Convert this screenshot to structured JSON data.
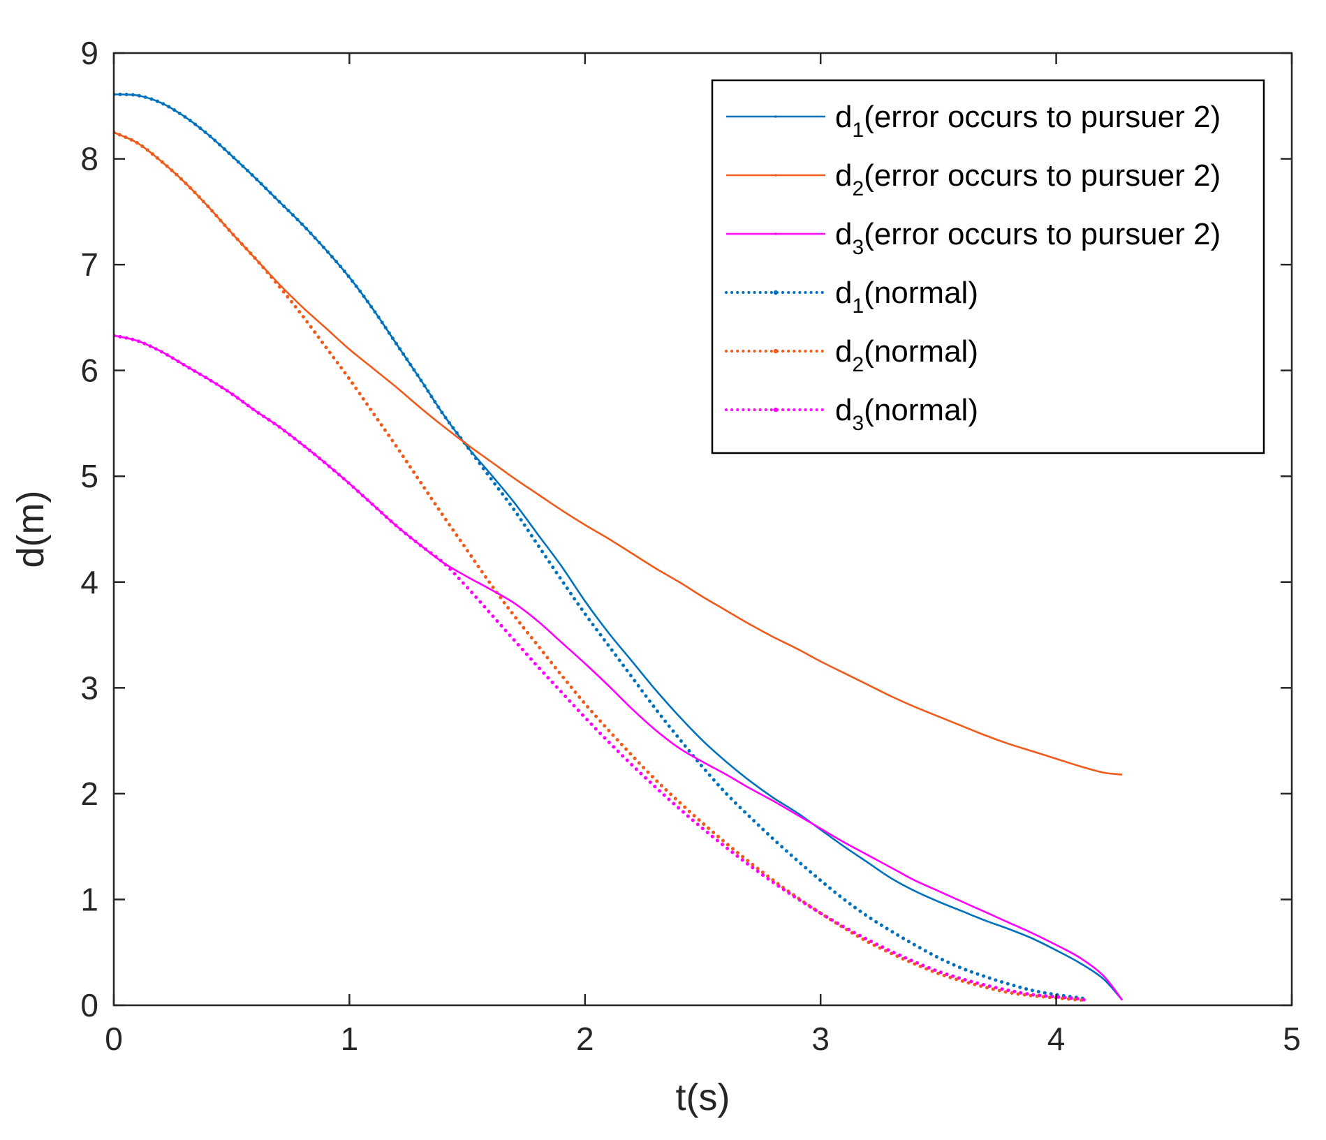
{
  "chart_data": {
    "type": "line",
    "title": "",
    "xlabel": "t(s)",
    "ylabel": "d(m)",
    "xlim": [
      0,
      5
    ],
    "ylim": [
      0,
      9
    ],
    "xticks": [
      "0",
      "1",
      "2",
      "3",
      "4",
      "5"
    ],
    "yticks": [
      "0",
      "1",
      "2",
      "3",
      "4",
      "5",
      "6",
      "7",
      "8",
      "9"
    ],
    "grid": false,
    "legend_position": "top-right",
    "series": [
      {
        "name": "d1(error occurs to pursuer 2)",
        "name_base": "d",
        "name_sub": "1",
        "name_rest": "(error occurs to pursuer 2)",
        "color": "#0072BD",
        "style": "solid",
        "points": [
          [
            0,
            8.61
          ],
          [
            0.1,
            8.6
          ],
          [
            0.2,
            8.53
          ],
          [
            0.3,
            8.4
          ],
          [
            0.4,
            8.23
          ],
          [
            0.5,
            8.03
          ],
          [
            0.6,
            7.82
          ],
          [
            0.7,
            7.6
          ],
          [
            0.8,
            7.38
          ],
          [
            0.9,
            7.14
          ],
          [
            1.0,
            6.88
          ],
          [
            1.1,
            6.58
          ],
          [
            1.2,
            6.25
          ],
          [
            1.3,
            5.92
          ],
          [
            1.4,
            5.58
          ],
          [
            1.5,
            5.28
          ],
          [
            1.6,
            5.02
          ],
          [
            1.7,
            4.75
          ],
          [
            1.8,
            4.45
          ],
          [
            1.9,
            4.15
          ],
          [
            2.0,
            3.82
          ],
          [
            2.1,
            3.52
          ],
          [
            2.2,
            3.25
          ],
          [
            2.3,
            2.98
          ],
          [
            2.4,
            2.73
          ],
          [
            2.5,
            2.5
          ],
          [
            2.6,
            2.3
          ],
          [
            2.7,
            2.12
          ],
          [
            2.8,
            1.96
          ],
          [
            2.9,
            1.82
          ],
          [
            3.0,
            1.66
          ],
          [
            3.1,
            1.5
          ],
          [
            3.2,
            1.35
          ],
          [
            3.3,
            1.2
          ],
          [
            3.4,
            1.08
          ],
          [
            3.5,
            0.98
          ],
          [
            3.6,
            0.89
          ],
          [
            3.7,
            0.8
          ],
          [
            3.8,
            0.72
          ],
          [
            3.9,
            0.63
          ],
          [
            4.0,
            0.52
          ],
          [
            4.1,
            0.4
          ],
          [
            4.2,
            0.25
          ],
          [
            4.28,
            0.05
          ]
        ]
      },
      {
        "name": "d2(error occurs to pursuer 2)",
        "name_base": "d",
        "name_sub": "2",
        "name_rest": "(error occurs to pursuer 2)",
        "color": "#F05A1A",
        "style": "solid",
        "points": [
          [
            0,
            8.25
          ],
          [
            0.1,
            8.15
          ],
          [
            0.2,
            7.98
          ],
          [
            0.3,
            7.78
          ],
          [
            0.4,
            7.55
          ],
          [
            0.5,
            7.3
          ],
          [
            0.6,
            7.06
          ],
          [
            0.7,
            6.82
          ],
          [
            0.8,
            6.6
          ],
          [
            0.9,
            6.4
          ],
          [
            1.0,
            6.2
          ],
          [
            1.1,
            6.02
          ],
          [
            1.2,
            5.84
          ],
          [
            1.3,
            5.65
          ],
          [
            1.4,
            5.47
          ],
          [
            1.5,
            5.3
          ],
          [
            1.6,
            5.14
          ],
          [
            1.7,
            4.98
          ],
          [
            1.8,
            4.83
          ],
          [
            1.9,
            4.68
          ],
          [
            2.0,
            4.54
          ],
          [
            2.1,
            4.41
          ],
          [
            2.2,
            4.27
          ],
          [
            2.3,
            4.13
          ],
          [
            2.4,
            4.0
          ],
          [
            2.5,
            3.86
          ],
          [
            2.6,
            3.73
          ],
          [
            2.7,
            3.6
          ],
          [
            2.8,
            3.48
          ],
          [
            2.9,
            3.37
          ],
          [
            3.0,
            3.25
          ],
          [
            3.1,
            3.14
          ],
          [
            3.2,
            3.03
          ],
          [
            3.3,
            2.92
          ],
          [
            3.4,
            2.82
          ],
          [
            3.5,
            2.73
          ],
          [
            3.6,
            2.64
          ],
          [
            3.7,
            2.55
          ],
          [
            3.8,
            2.47
          ],
          [
            3.9,
            2.4
          ],
          [
            4.0,
            2.33
          ],
          [
            4.1,
            2.26
          ],
          [
            4.2,
            2.2
          ],
          [
            4.28,
            2.18
          ]
        ]
      },
      {
        "name": "d3(error occurs to pursuer 2)",
        "name_base": "d",
        "name_sub": "3",
        "name_rest": "(error occurs to pursuer 2)",
        "color": "#FF00FF",
        "style": "solid",
        "points": [
          [
            0,
            6.33
          ],
          [
            0.1,
            6.28
          ],
          [
            0.2,
            6.18
          ],
          [
            0.3,
            6.05
          ],
          [
            0.4,
            5.92
          ],
          [
            0.5,
            5.78
          ],
          [
            0.6,
            5.62
          ],
          [
            0.7,
            5.47
          ],
          [
            0.8,
            5.3
          ],
          [
            0.9,
            5.12
          ],
          [
            1.0,
            4.93
          ],
          [
            1.1,
            4.73
          ],
          [
            1.2,
            4.53
          ],
          [
            1.3,
            4.35
          ],
          [
            1.4,
            4.18
          ],
          [
            1.5,
            4.05
          ],
          [
            1.6,
            3.93
          ],
          [
            1.7,
            3.8
          ],
          [
            1.8,
            3.63
          ],
          [
            1.9,
            3.43
          ],
          [
            2.0,
            3.23
          ],
          [
            2.1,
            3.02
          ],
          [
            2.2,
            2.8
          ],
          [
            2.3,
            2.6
          ],
          [
            2.4,
            2.43
          ],
          [
            2.5,
            2.3
          ],
          [
            2.6,
            2.18
          ],
          [
            2.7,
            2.05
          ],
          [
            2.8,
            1.93
          ],
          [
            2.9,
            1.8
          ],
          [
            3.0,
            1.67
          ],
          [
            3.1,
            1.54
          ],
          [
            3.2,
            1.42
          ],
          [
            3.3,
            1.3
          ],
          [
            3.4,
            1.18
          ],
          [
            3.5,
            1.08
          ],
          [
            3.6,
            0.98
          ],
          [
            3.7,
            0.88
          ],
          [
            3.8,
            0.78
          ],
          [
            3.9,
            0.68
          ],
          [
            4.0,
            0.57
          ],
          [
            4.1,
            0.45
          ],
          [
            4.2,
            0.28
          ],
          [
            4.28,
            0.05
          ]
        ]
      },
      {
        "name": "d1(normal)",
        "name_base": "d",
        "name_sub": "1",
        "name_rest": "(normal)",
        "color": "#0072BD",
        "style": "dotted",
        "points": [
          [
            0,
            8.61
          ],
          [
            0.1,
            8.6
          ],
          [
            0.2,
            8.53
          ],
          [
            0.3,
            8.4
          ],
          [
            0.4,
            8.23
          ],
          [
            0.5,
            8.03
          ],
          [
            0.6,
            7.82
          ],
          [
            0.7,
            7.6
          ],
          [
            0.8,
            7.38
          ],
          [
            0.9,
            7.14
          ],
          [
            1.0,
            6.88
          ],
          [
            1.1,
            6.58
          ],
          [
            1.2,
            6.25
          ],
          [
            1.3,
            5.92
          ],
          [
            1.4,
            5.58
          ],
          [
            1.5,
            5.28
          ],
          [
            1.6,
            4.98
          ],
          [
            1.7,
            4.68
          ],
          [
            1.8,
            4.35
          ],
          [
            1.9,
            4.02
          ],
          [
            2.0,
            3.7
          ],
          [
            2.1,
            3.4
          ],
          [
            2.2,
            3.1
          ],
          [
            2.3,
            2.8
          ],
          [
            2.4,
            2.52
          ],
          [
            2.5,
            2.25
          ],
          [
            2.6,
            2.0
          ],
          [
            2.7,
            1.78
          ],
          [
            2.8,
            1.57
          ],
          [
            2.9,
            1.37
          ],
          [
            3.0,
            1.18
          ],
          [
            3.1,
            1.0
          ],
          [
            3.2,
            0.84
          ],
          [
            3.3,
            0.7
          ],
          [
            3.4,
            0.57
          ],
          [
            3.5,
            0.45
          ],
          [
            3.6,
            0.35
          ],
          [
            3.7,
            0.27
          ],
          [
            3.8,
            0.2
          ],
          [
            3.9,
            0.14
          ],
          [
            4.0,
            0.1
          ],
          [
            4.1,
            0.07
          ],
          [
            4.12,
            0.06
          ]
        ]
      },
      {
        "name": "d2(normal)",
        "name_base": "d",
        "name_sub": "2",
        "name_rest": "(normal)",
        "color": "#F05A1A",
        "style": "dotted",
        "points": [
          [
            0,
            8.25
          ],
          [
            0.1,
            8.15
          ],
          [
            0.2,
            7.98
          ],
          [
            0.3,
            7.78
          ],
          [
            0.4,
            7.55
          ],
          [
            0.5,
            7.3
          ],
          [
            0.6,
            7.06
          ],
          [
            0.7,
            6.8
          ],
          [
            0.8,
            6.52
          ],
          [
            0.9,
            6.22
          ],
          [
            1.0,
            5.92
          ],
          [
            1.1,
            5.6
          ],
          [
            1.2,
            5.28
          ],
          [
            1.3,
            4.95
          ],
          [
            1.4,
            4.62
          ],
          [
            1.5,
            4.3
          ],
          [
            1.6,
            3.98
          ],
          [
            1.7,
            3.68
          ],
          [
            1.8,
            3.4
          ],
          [
            1.9,
            3.12
          ],
          [
            2.0,
            2.85
          ],
          [
            2.1,
            2.6
          ],
          [
            2.2,
            2.36
          ],
          [
            2.3,
            2.13
          ],
          [
            2.4,
            1.92
          ],
          [
            2.5,
            1.72
          ],
          [
            2.6,
            1.53
          ],
          [
            2.7,
            1.35
          ],
          [
            2.8,
            1.18
          ],
          [
            2.9,
            1.02
          ],
          [
            3.0,
            0.87
          ],
          [
            3.1,
            0.73
          ],
          [
            3.2,
            0.6
          ],
          [
            3.3,
            0.49
          ],
          [
            3.4,
            0.39
          ],
          [
            3.5,
            0.3
          ],
          [
            3.6,
            0.23
          ],
          [
            3.7,
            0.17
          ],
          [
            3.8,
            0.12
          ],
          [
            3.9,
            0.09
          ],
          [
            4.0,
            0.07
          ],
          [
            4.1,
            0.05
          ],
          [
            4.12,
            0.05
          ]
        ]
      },
      {
        "name": "d3(normal)",
        "name_base": "d",
        "name_sub": "3",
        "name_rest": "(normal)",
        "color": "#FF00FF",
        "style": "dotted",
        "points": [
          [
            0,
            6.33
          ],
          [
            0.1,
            6.28
          ],
          [
            0.2,
            6.18
          ],
          [
            0.3,
            6.05
          ],
          [
            0.4,
            5.92
          ],
          [
            0.5,
            5.78
          ],
          [
            0.6,
            5.62
          ],
          [
            0.7,
            5.47
          ],
          [
            0.8,
            5.3
          ],
          [
            0.9,
            5.12
          ],
          [
            1.0,
            4.93
          ],
          [
            1.1,
            4.73
          ],
          [
            1.2,
            4.53
          ],
          [
            1.3,
            4.35
          ],
          [
            1.4,
            4.18
          ],
          [
            1.5,
            3.95
          ],
          [
            1.6,
            3.7
          ],
          [
            1.7,
            3.45
          ],
          [
            1.8,
            3.2
          ],
          [
            1.9,
            2.96
          ],
          [
            2.0,
            2.72
          ],
          [
            2.1,
            2.49
          ],
          [
            2.2,
            2.27
          ],
          [
            2.3,
            2.06
          ],
          [
            2.4,
            1.86
          ],
          [
            2.5,
            1.67
          ],
          [
            2.6,
            1.49
          ],
          [
            2.7,
            1.32
          ],
          [
            2.8,
            1.16
          ],
          [
            2.9,
            1.01
          ],
          [
            3.0,
            0.87
          ],
          [
            3.1,
            0.74
          ],
          [
            3.2,
            0.62
          ],
          [
            3.3,
            0.51
          ],
          [
            3.4,
            0.41
          ],
          [
            3.5,
            0.32
          ],
          [
            3.6,
            0.25
          ],
          [
            3.7,
            0.19
          ],
          [
            3.8,
            0.14
          ],
          [
            3.9,
            0.1
          ],
          [
            4.0,
            0.08
          ],
          [
            4.1,
            0.06
          ],
          [
            4.12,
            0.05
          ]
        ]
      }
    ]
  }
}
